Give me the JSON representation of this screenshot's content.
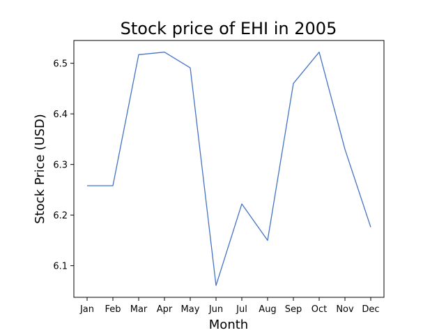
{
  "chart_data": {
    "type": "line",
    "title": "Stock price of EHI in 2005",
    "xlabel": "Month",
    "ylabel": "Stock Price (USD)",
    "categories": [
      "Jan",
      "Feb",
      "Mar",
      "Apr",
      "May",
      "Jun",
      "Jul",
      "Aug",
      "Sep",
      "Oct",
      "Nov",
      "Dec"
    ],
    "series": [
      {
        "values": [
          6.258,
          6.258,
          6.517,
          6.522,
          6.491,
          6.061,
          6.222,
          6.15,
          6.46,
          6.522,
          6.33,
          6.176
        ],
        "color": "#4472c4"
      }
    ],
    "ylim": [
      6.0375,
      6.545
    ],
    "yticks": [
      6.1,
      6.2,
      6.3,
      6.4,
      6.5
    ],
    "ytick_labels": [
      "6.1",
      "6.2",
      "6.3",
      "6.4",
      "6.5"
    ],
    "grid": false,
    "legend": "none"
  }
}
